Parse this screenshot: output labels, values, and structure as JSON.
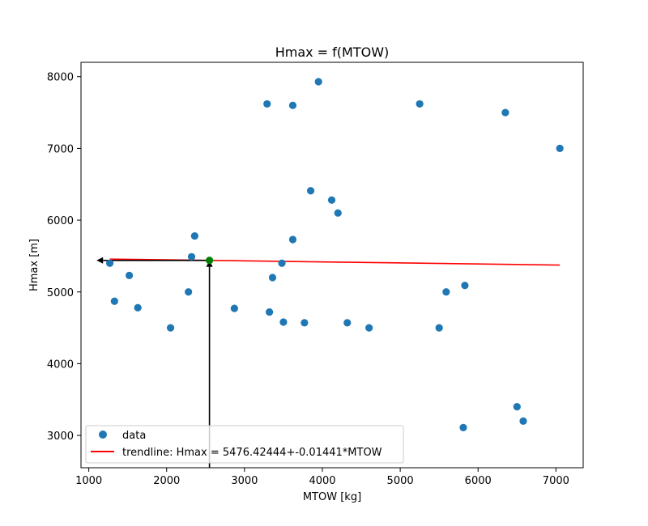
{
  "chart_data": {
    "type": "scatter",
    "title": "Hmax = f(MTOW)",
    "xlabel": "MTOW [kg]",
    "ylabel": "Hmax [m]",
    "xlim": [
      900,
      7350
    ],
    "ylim": [
      2550,
      8200
    ],
    "xticks": [
      1000,
      2000,
      3000,
      4000,
      5000,
      6000,
      7000
    ],
    "yticks": [
      3000,
      4000,
      5000,
      6000,
      7000,
      8000
    ],
    "grid": false,
    "legend_position": "lower-left",
    "series": [
      {
        "name": "data",
        "kind": "scatter",
        "color": "#1f77b4",
        "points": [
          [
            1270,
            5400
          ],
          [
            1330,
            4870
          ],
          [
            1520,
            5230
          ],
          [
            1630,
            4780
          ],
          [
            2050,
            4500
          ],
          [
            2280,
            5000
          ],
          [
            2320,
            5490
          ],
          [
            2360,
            5780
          ],
          [
            2870,
            4770
          ],
          [
            3290,
            7620
          ],
          [
            3320,
            4720
          ],
          [
            3360,
            5200
          ],
          [
            3480,
            5400
          ],
          [
            3500,
            4580
          ],
          [
            3620,
            7600
          ],
          [
            3620,
            5730
          ],
          [
            3770,
            4570
          ],
          [
            3850,
            6410
          ],
          [
            3950,
            7930
          ],
          [
            4120,
            6280
          ],
          [
            4200,
            6100
          ],
          [
            4320,
            4570
          ],
          [
            4600,
            4500
          ],
          [
            5250,
            7620
          ],
          [
            5500,
            4500
          ],
          [
            5590,
            5000
          ],
          [
            5810,
            3110
          ],
          [
            5830,
            5090
          ],
          [
            6350,
            7500
          ],
          [
            6500,
            3400
          ],
          [
            6580,
            3200
          ],
          [
            7050,
            7000
          ]
        ]
      },
      {
        "name": "trendline: Hmax = 5476.42444+-0.01441*MTOW",
        "kind": "line",
        "color": "#ff0000",
        "x": [
          1270,
          7050
        ],
        "y": [
          5458.12,
          5374.83
        ]
      }
    ],
    "marked_point": {
      "x": 2550,
      "y": 5439.68,
      "color": "#008000"
    },
    "arrows": [
      {
        "from": [
          2550,
          2550
        ],
        "to": [
          2550,
          5439.68
        ],
        "color": "#000000"
      },
      {
        "from": [
          2550,
          5439.68
        ],
        "to": [
          1100,
          5439.68
        ],
        "color": "#000000"
      }
    ]
  }
}
